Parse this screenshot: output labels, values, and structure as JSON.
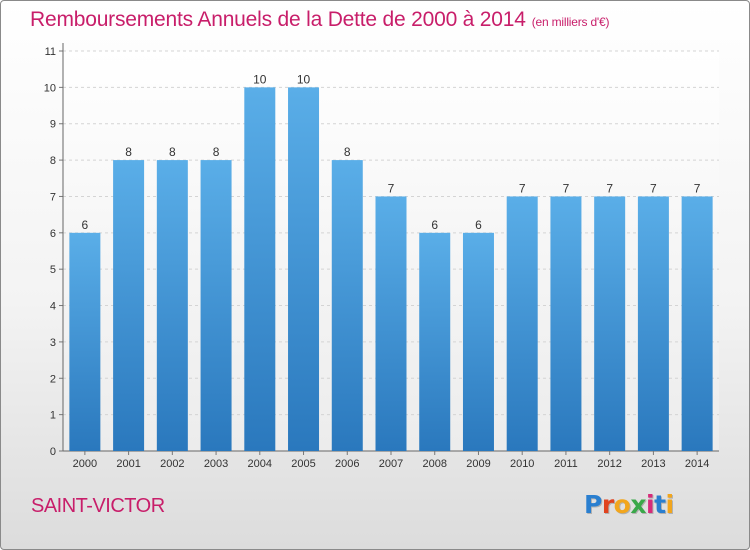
{
  "header": {
    "title": "Remboursements Annuels de la Dette de 2000 à 2014",
    "subtitle": "(en milliers d'€)"
  },
  "footer": {
    "commune": "SAINT-VICTOR",
    "logo_letters": [
      "P",
      "r",
      "o",
      "x",
      "i",
      "t",
      "i"
    ],
    "logo_colors": [
      "#2a7fd0",
      "#e0431f",
      "#f2a61d",
      "#3aa84a",
      "#d62c7a",
      "#2a7fd0",
      "#f2a61d"
    ]
  },
  "chart_data": {
    "type": "bar",
    "title": "Remboursements Annuels de la Dette de 2000 à 2014",
    "subtitle": "(en milliers d'€)",
    "categories": [
      "2000",
      "2001",
      "2002",
      "2003",
      "2004",
      "2005",
      "2006",
      "2007",
      "2008",
      "2009",
      "2010",
      "2011",
      "2012",
      "2013",
      "2014"
    ],
    "values": [
      6,
      8,
      8,
      8,
      10,
      10,
      8,
      7,
      6,
      6,
      7,
      7,
      7,
      7,
      7
    ],
    "data_labels": [
      "6",
      "8",
      "8",
      "8",
      "10",
      "10",
      "8",
      "7",
      "6",
      "6",
      "7",
      "7",
      "7",
      "7",
      "7"
    ],
    "ylim": [
      0,
      11
    ],
    "yticks": [
      0,
      1,
      2,
      3,
      4,
      5,
      6,
      7,
      8,
      9,
      10,
      11
    ],
    "grid": true,
    "bar_color_top": "#5aaee8",
    "bar_color_bottom": "#2a78bd"
  }
}
